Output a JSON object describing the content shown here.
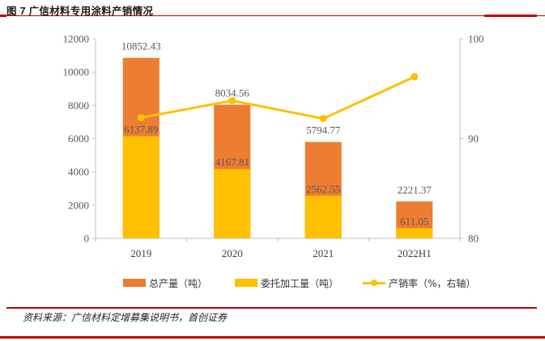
{
  "figure": {
    "title": "图 7 广信材料专用涂料产销情况",
    "source": "资料来源：广信材料定增募集说明书，首创证券"
  },
  "chart_data": {
    "type": "bar",
    "categories": [
      "2019",
      "2020",
      "2021",
      "2022H1"
    ],
    "series": [
      {
        "name": "总产量（吨）",
        "kind": "bar",
        "axis": "left",
        "color": "#ed7d31",
        "values": [
          10852.43,
          8034.56,
          5794.77,
          2221.37
        ],
        "labels": [
          "10852.43",
          "8034.56",
          "5794.77",
          "2221.37"
        ]
      },
      {
        "name": "委托加工量（吨）",
        "kind": "bar",
        "axis": "left",
        "color": "#ffc000",
        "values": [
          6137.89,
          4167.81,
          2562.55,
          611.05
        ],
        "labels": [
          "6137.89",
          "4167.81",
          "2562.55",
          "611.05"
        ]
      },
      {
        "name": "产销率（%，右轴）",
        "kind": "line",
        "axis": "right",
        "color": "#ffc000",
        "values": [
          92.1,
          93.8,
          92.0,
          96.2
        ]
      }
    ],
    "y_left": {
      "min": 0,
      "max": 12000,
      "ticks": [
        "0",
        "2000",
        "4000",
        "6000",
        "8000",
        "10000",
        "12000"
      ]
    },
    "y_right": {
      "min": 80,
      "max": 100,
      "ticks": [
        "80",
        "90",
        "100"
      ]
    },
    "legend_position": "bottom"
  }
}
